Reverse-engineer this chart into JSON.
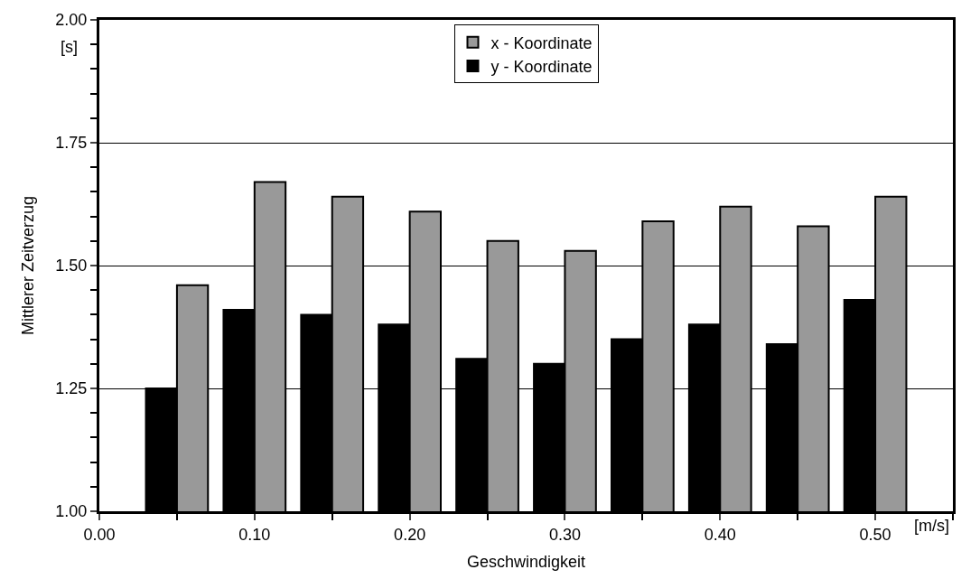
{
  "chart_data": {
    "type": "bar",
    "xlabel": "Geschwindigkeit",
    "ylabel": "Mittlerer Zeitverzug",
    "annotations": [
      "[s]",
      "[m/s]"
    ],
    "x": [
      0.05,
      0.1,
      0.15,
      0.2,
      0.25,
      0.3,
      0.35,
      0.4,
      0.45,
      0.5
    ],
    "series": [
      {
        "name": "y - Koordinate",
        "color": "#000000",
        "values": [
          1.25,
          1.41,
          1.4,
          1.38,
          1.31,
          1.3,
          1.35,
          1.38,
          1.34,
          1.43
        ]
      },
      {
        "name": "x - Koordinate",
        "color": "#999999",
        "values": [
          1.46,
          1.67,
          1.64,
          1.61,
          1.55,
          1.53,
          1.59,
          1.62,
          1.58,
          1.64
        ]
      }
    ],
    "xlim": [
      0,
      0.55
    ],
    "xticks": [
      {
        "value": 0,
        "label": "0.00"
      },
      {
        "value": 0.05,
        "label": null
      },
      {
        "value": 0.1,
        "label": "0.10"
      },
      {
        "value": 0.15,
        "label": null
      },
      {
        "value": 0.2,
        "label": "0.20"
      },
      {
        "value": 0.25,
        "label": null
      },
      {
        "value": 0.3,
        "label": "0.30"
      },
      {
        "value": 0.35,
        "label": null
      },
      {
        "value": 0.4,
        "label": "0.40"
      },
      {
        "value": 0.45,
        "label": null
      },
      {
        "value": 0.5,
        "label": "0.50"
      },
      {
        "value": 0.55,
        "label": null
      }
    ],
    "ylim": [
      1.0,
      2.0
    ],
    "yticks": [
      {
        "value": 1.0,
        "label": "1.00"
      },
      {
        "value": 1.05,
        "label": null
      },
      {
        "value": 1.1,
        "label": null
      },
      {
        "value": 1.15,
        "label": null
      },
      {
        "value": 1.2,
        "label": null
      },
      {
        "value": 1.25,
        "label": "1.25"
      },
      {
        "value": 1.3,
        "label": null
      },
      {
        "value": 1.35,
        "label": null
      },
      {
        "value": 1.4,
        "label": null
      },
      {
        "value": 1.45,
        "label": null
      },
      {
        "value": 1.5,
        "label": "1.50"
      },
      {
        "value": 1.55,
        "label": null
      },
      {
        "value": 1.6,
        "label": null
      },
      {
        "value": 1.65,
        "label": null
      },
      {
        "value": 1.7,
        "label": null
      },
      {
        "value": 1.75,
        "label": "1.75"
      },
      {
        "value": 1.8,
        "label": null
      },
      {
        "value": 1.85,
        "label": null
      },
      {
        "value": 1.9,
        "label": null
      },
      {
        "value": 1.95,
        "label": null
      },
      {
        "value": 2.0,
        "label": "2.00"
      }
    ],
    "grid": "y",
    "legend": "top"
  }
}
